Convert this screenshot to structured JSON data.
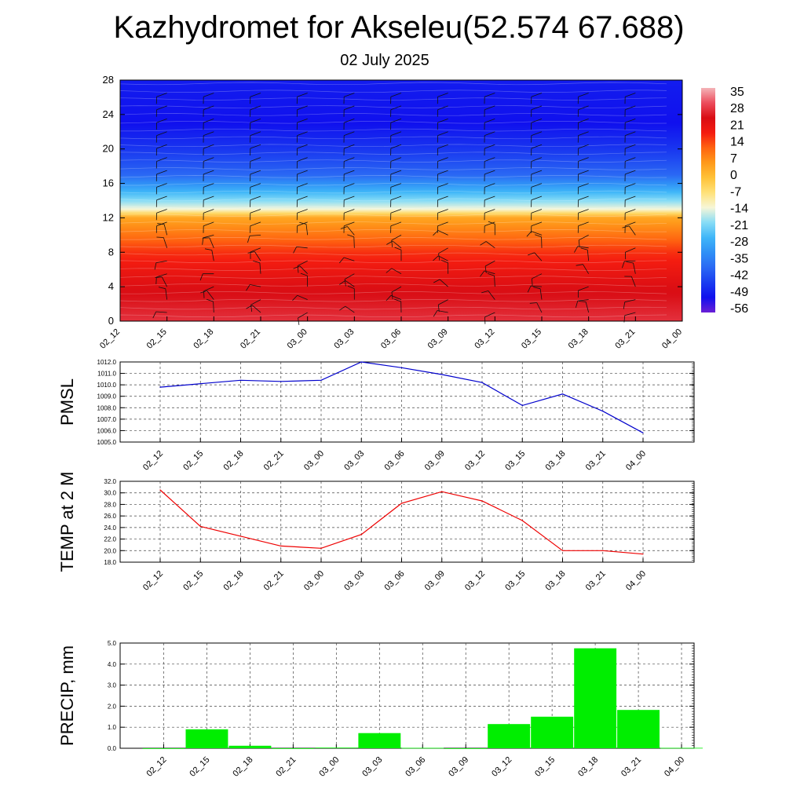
{
  "title": "Kazhydromet for Akseleu(52.574 67.688)",
  "subtitle": "02 July 2025",
  "chart_data": [
    {
      "type": "heatmap",
      "ylim": [
        0,
        28
      ],
      "yticks": [
        "0",
        "4",
        "8",
        "12",
        "16",
        "20",
        "24",
        "28"
      ],
      "ytick_values": [
        0,
        4,
        8,
        12,
        16,
        20,
        24,
        28
      ],
      "x": [
        "02_12",
        "02_15",
        "02_18",
        "02_21",
        "03_00",
        "03_03",
        "03_06",
        "03_09",
        "03_12",
        "03_15",
        "03_18",
        "03_21",
        "04_00"
      ],
      "value_profile_levels": [
        0,
        4,
        8,
        12,
        13,
        15,
        17,
        20,
        23,
        28
      ],
      "value_profile_temps": [
        32,
        27,
        19,
        5,
        -14,
        -28,
        -42,
        -50,
        -56,
        -54
      ],
      "colorbar": {
        "labels": [
          "35",
          "28",
          "21",
          "14",
          "7",
          "0",
          "-7",
          "-14",
          "-21",
          "-28",
          "-35",
          "-42",
          "-49",
          "-56"
        ],
        "min": -63,
        "max": 42
      },
      "wind_barbs": true
    },
    {
      "type": "line",
      "ylabel": "PMSL",
      "x": [
        "02_12",
        "02_15",
        "02_18",
        "02_21",
        "03_00",
        "03_03",
        "03_06",
        "03_09",
        "03_12",
        "03_15",
        "03_18",
        "03_21",
        "04_00"
      ],
      "series": [
        {
          "values": [
            1009.8,
            1010.1,
            1010.4,
            1010.3,
            1010.4,
            1012.0,
            1011.5,
            1010.9,
            1010.2,
            1008.2,
            1009.2,
            1007.7,
            1005.8
          ],
          "color": "#0000cc"
        }
      ],
      "ylim": [
        1005.0,
        1012.0
      ],
      "yticks": [
        "1005.0",
        "1006.0",
        "1007.0",
        "1008.0",
        "1009.0",
        "1010.0",
        "1011.0",
        "1012.0"
      ],
      "ytick_values": [
        1005,
        1006,
        1007,
        1008,
        1009,
        1010,
        1011,
        1012
      ],
      "grid": true
    },
    {
      "type": "line",
      "ylabel": "TEMP at 2 M",
      "x": [
        "02_12",
        "02_15",
        "02_18",
        "02_21",
        "03_00",
        "03_03",
        "03_06",
        "03_09",
        "03_12",
        "03_15",
        "03_18",
        "03_21",
        "04_00"
      ],
      "series": [
        {
          "values": [
            30.5,
            24.2,
            22.5,
            20.8,
            20.4,
            22.8,
            28.2,
            30.2,
            28.6,
            25.2,
            20.0,
            20.0,
            19.4
          ],
          "color": "#ee0000"
        }
      ],
      "ylim": [
        18.0,
        32.0
      ],
      "yticks": [
        "18.0",
        "20.0",
        "22.0",
        "24.0",
        "26.0",
        "28.0",
        "30.0",
        "32.0"
      ],
      "ytick_values": [
        18,
        20,
        22,
        24,
        26,
        28,
        30,
        32
      ],
      "grid": true
    },
    {
      "type": "bar",
      "ylabel": "PRECIP, mm",
      "categories": [
        "02_12",
        "02_15",
        "02_18",
        "02_21",
        "03_00",
        "03_03",
        "03_06",
        "03_09",
        "03_12",
        "03_15",
        "03_18",
        "03_21",
        "04_00"
      ],
      "bar_positions": [
        0.5,
        1.5,
        2.5,
        3.5,
        4.5,
        5.5,
        6.5,
        7.5,
        8.5,
        9.5,
        10.5,
        11.5,
        12.5
      ],
      "values": [
        0.0,
        0.9,
        0.12,
        0.0,
        0.03,
        0.72,
        0.02,
        0.0,
        1.15,
        1.5,
        4.75,
        1.82,
        0.02
      ],
      "bar_color": "#00ee00",
      "ylim": [
        0.0,
        5.0
      ],
      "yticks": [
        "0.0",
        "1.0",
        "2.0",
        "3.0",
        "4.0",
        "5.0"
      ],
      "ytick_values": [
        0,
        1,
        2,
        3,
        4,
        5
      ],
      "grid": true
    }
  ]
}
